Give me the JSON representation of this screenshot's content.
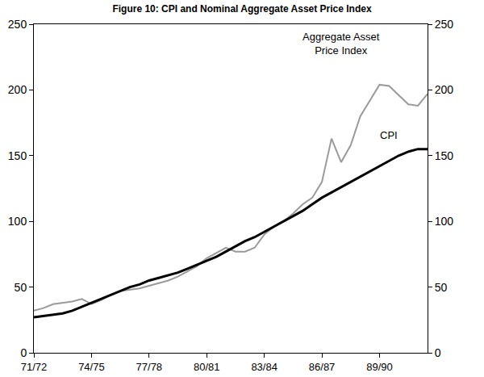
{
  "chart_data": {
    "type": "line",
    "title": "Figure 10: CPI and Nominal Aggregate Asset Price Index",
    "categories": [
      "71/72",
      null,
      null,
      null,
      null,
      null,
      "74/75",
      null,
      null,
      null,
      null,
      null,
      "77/78",
      null,
      null,
      null,
      null,
      null,
      "80/81",
      null,
      null,
      null,
      null,
      null,
      "83/84",
      null,
      null,
      null,
      null,
      null,
      "86/87",
      null,
      null,
      null,
      null,
      null,
      "89/90",
      null,
      null,
      null,
      null,
      null
    ],
    "series": [
      {
        "name": "Aggregate Asset Price Index",
        "color": "#9a9a9a",
        "values": [
          32,
          34,
          37,
          38,
          39,
          41,
          37,
          40,
          44,
          47,
          48,
          49,
          51,
          53,
          55,
          58,
          62,
          66,
          72,
          76,
          80,
          77,
          77,
          80,
          90,
          96,
          100,
          106,
          113,
          118,
          130,
          163,
          145,
          158,
          180,
          192,
          204,
          203,
          196,
          189,
          188,
          197
        ]
      },
      {
        "name": "CPI",
        "color": "#000000",
        "values": [
          27,
          28,
          29,
          30,
          32,
          35,
          38,
          41,
          44,
          47,
          50,
          52,
          55,
          57,
          59,
          61,
          64,
          67,
          70,
          73,
          77,
          81,
          85,
          88,
          92,
          96,
          100,
          104,
          108,
          113,
          118,
          122,
          126,
          130,
          134,
          138,
          142,
          146,
          150,
          153,
          155,
          155
        ]
      }
    ],
    "ylim": [
      0,
      250
    ],
    "yticks": [
      0,
      50,
      100,
      150,
      200,
      250
    ],
    "y2lim": [
      0,
      250
    ],
    "y2ticks": [
      0,
      50,
      100,
      150,
      200,
      250
    ],
    "grid": false,
    "legend": "none"
  }
}
